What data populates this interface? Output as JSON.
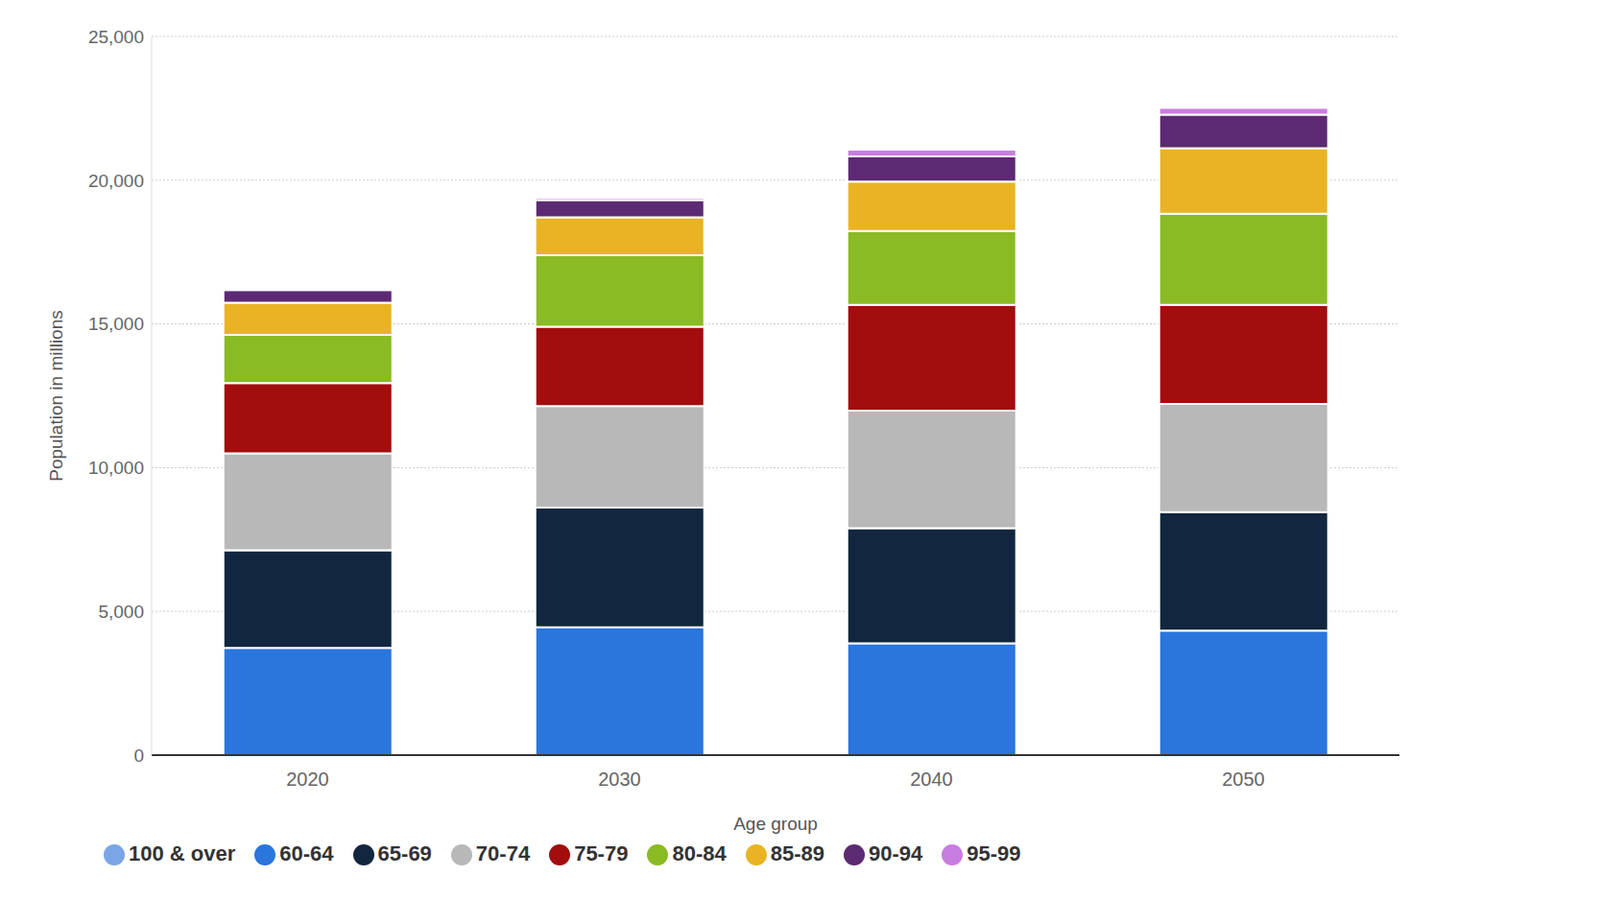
{
  "chart_data": {
    "type": "bar",
    "stacked": true,
    "grid": true,
    "legend": "bottom",
    "x_label": "Age group",
    "y_label": "Population in millions",
    "categories": [
      "2020",
      "2030",
      "2040",
      "2050"
    ],
    "ylim": [
      0,
      25000
    ],
    "yticks": [
      0,
      {
        "value": 5000,
        "label": "5,000"
      },
      {
        "value": 10000,
        "label": "10,000"
      },
      {
        "value": 15000,
        "label": "15,000"
      },
      {
        "value": 20000,
        "label": "20,000"
      },
      {
        "value": 25000,
        "label": "25,000"
      }
    ],
    "series": [
      {
        "name": "60-64",
        "color": "#2a76dd",
        "values": [
          3730,
          4450,
          3890,
          4330
        ]
      },
      {
        "name": "65-69",
        "color": "#12263f",
        "values": [
          3400,
          4160,
          4000,
          4120
        ]
      },
      {
        "name": "70-74",
        "color": "#b8b8b8",
        "values": [
          3370,
          3530,
          4090,
          3770
        ]
      },
      {
        "name": "75-79",
        "color": "#a20d0d",
        "values": [
          2440,
          2760,
          3680,
          3440
        ]
      },
      {
        "name": "80-84",
        "color": "#8aba24",
        "values": [
          1680,
          2490,
          2570,
          3170
        ]
      },
      {
        "name": "85-89",
        "color": "#e9b325",
        "values": [
          1120,
          1320,
          1720,
          2280
        ]
      },
      {
        "name": "90-94",
        "color": "#5c2a73",
        "values": [
          440,
          600,
          880,
          1170
        ]
      },
      {
        "name": "95-99",
        "color": "#c87de0",
        "values": [
          60,
          80,
          240,
          240
        ]
      },
      {
        "name": "100 & over",
        "color": "#7aa6e8",
        "values": [
          10,
          10,
          20,
          30
        ]
      }
    ]
  }
}
